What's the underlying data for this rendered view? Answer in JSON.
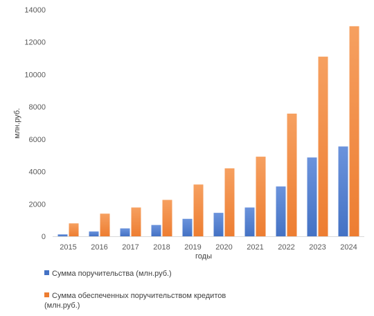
{
  "chart_data": {
    "type": "bar",
    "categories": [
      "2015",
      "2016",
      "2017",
      "2018",
      "2019",
      "2020",
      "2021",
      "2022",
      "2023",
      "2024"
    ],
    "series": [
      {
        "name": "Сумма поручительства (млн.руб.)",
        "color": "#4472c4",
        "values": [
          120,
          300,
          490,
          700,
          1080,
          1450,
          1780,
          3080,
          4870,
          5550
        ]
      },
      {
        "name": "Сумма обеспеченных поручительством кредитов (млн.руб.)",
        "color": "#ed7d31",
        "values": [
          800,
          1400,
          1780,
          2250,
          3200,
          4200,
          4920,
          7580,
          11100,
          12980
        ]
      }
    ],
    "xlabel": "годы",
    "ylabel": "млн.руб.",
    "ylim": [
      0,
      14000
    ],
    "yticks": [
      "0",
      "2000",
      "4000",
      "6000",
      "8000",
      "10000",
      "12000",
      "14000"
    ],
    "grid": false,
    "legend_position": "bottom-left"
  }
}
